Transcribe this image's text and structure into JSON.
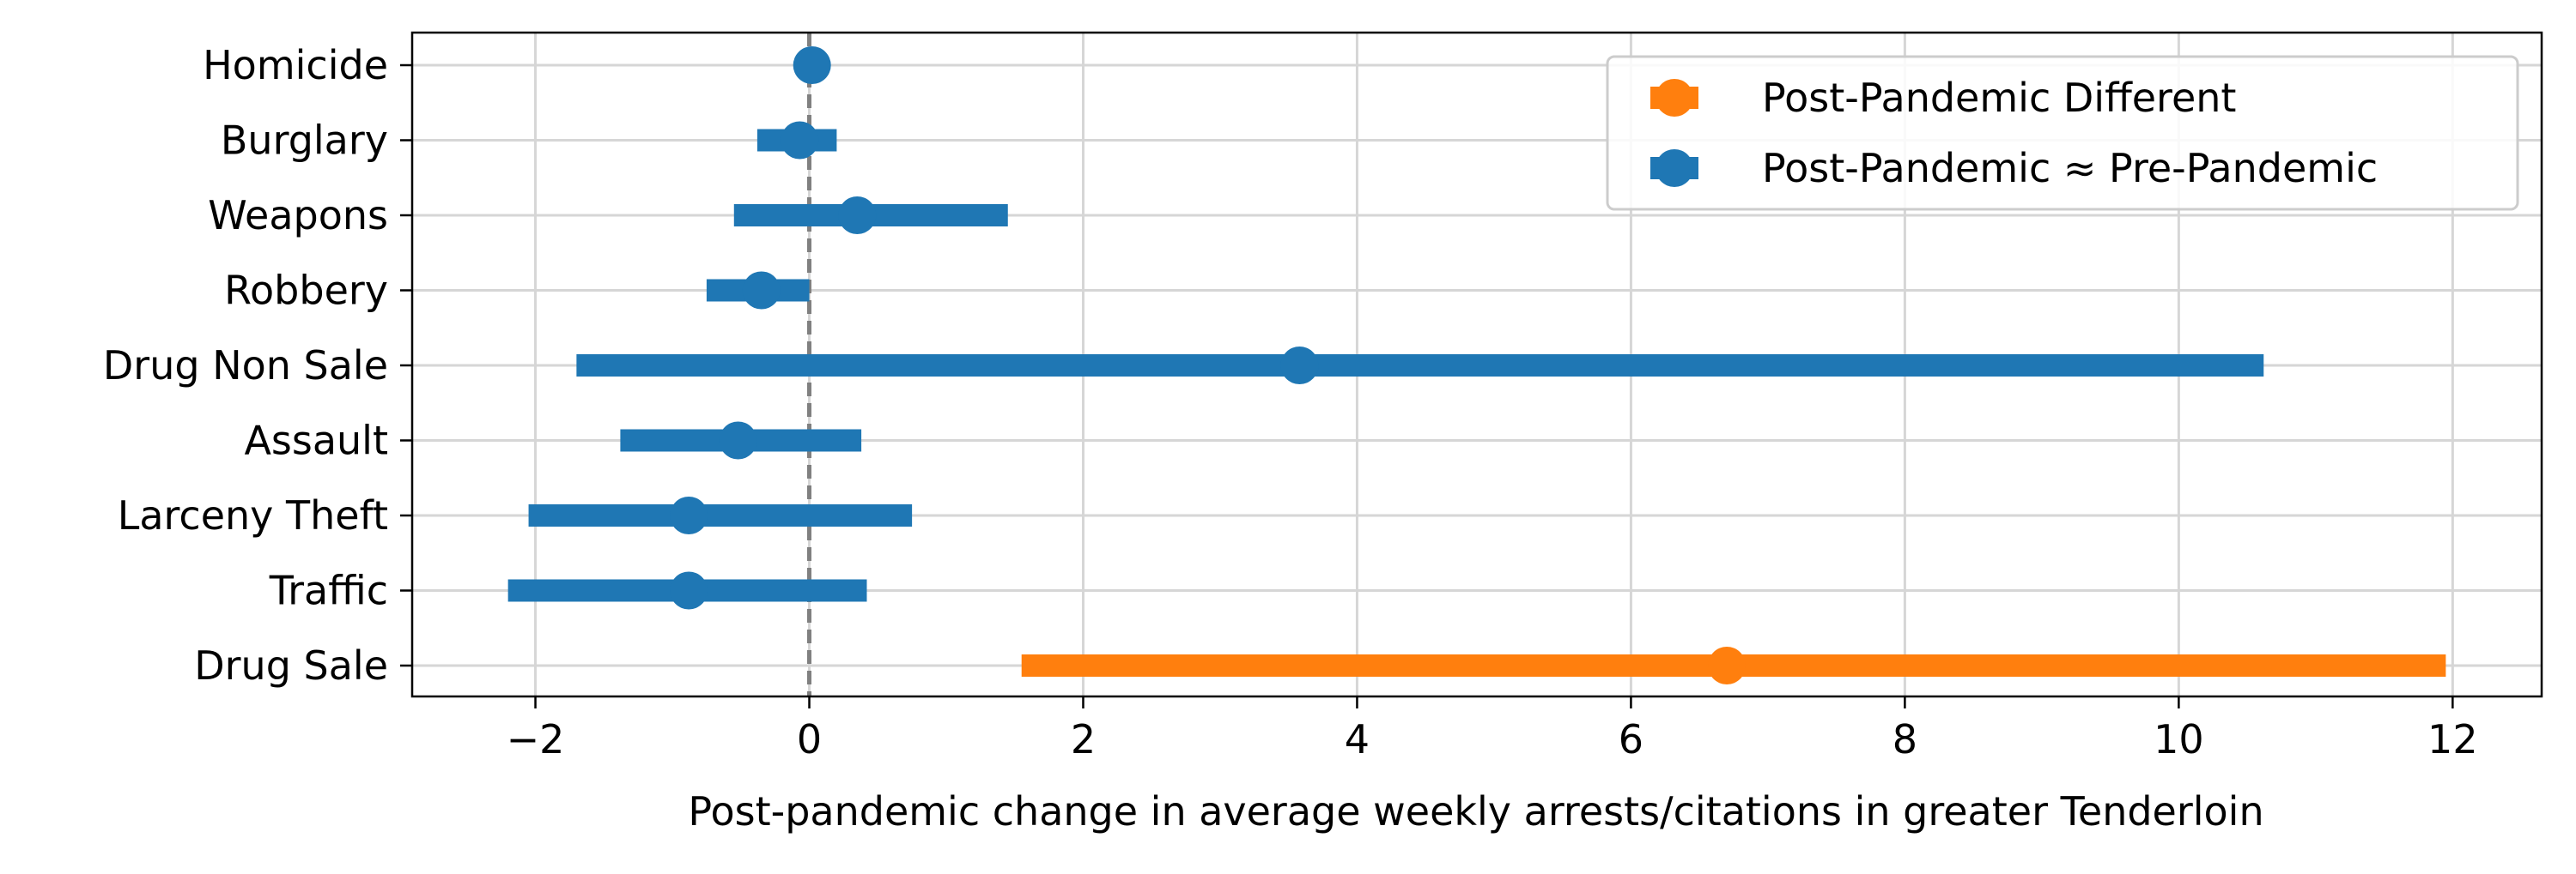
{
  "chart_data": {
    "type": "forest",
    "xlabel": "Post-pandemic change in average weekly arrests/citations in greater Tenderloin",
    "ylabel": "",
    "title": "",
    "xlim": [
      -2.9,
      12.65
    ],
    "xticks": [
      -2,
      0,
      2,
      4,
      6,
      8,
      10,
      12
    ],
    "xtick_labels": [
      "−2",
      "0",
      "2",
      "4",
      "6",
      "8",
      "10",
      "12"
    ],
    "grid": true,
    "reference_line": 0,
    "legend_position": "top-right",
    "series": [
      {
        "name": "Post-Pandemic Different",
        "color": "#ff7f0e"
      },
      {
        "name": "Post-Pandemic ≈ Pre-Pandemic",
        "color": "#1f77b4"
      }
    ],
    "categories": [
      {
        "label": "Homicide",
        "estimate": 0.02,
        "low": 0.02,
        "high": 0.02,
        "series": 1
      },
      {
        "label": "Burglary",
        "estimate": -0.07,
        "low": -0.38,
        "high": 0.2,
        "series": 1
      },
      {
        "label": "Weapons",
        "estimate": 0.35,
        "low": -0.55,
        "high": 1.45,
        "series": 1
      },
      {
        "label": "Robbery",
        "estimate": -0.35,
        "low": -0.75,
        "high": 0.0,
        "series": 1
      },
      {
        "label": "Drug Non Sale",
        "estimate": 3.58,
        "low": -1.7,
        "high": 10.62,
        "series": 1
      },
      {
        "label": "Assault",
        "estimate": -0.52,
        "low": -1.38,
        "high": 0.38,
        "series": 1
      },
      {
        "label": "Larceny Theft",
        "estimate": -0.88,
        "low": -2.05,
        "high": 0.75,
        "series": 1
      },
      {
        "label": "Traffic",
        "estimate": -0.88,
        "low": -2.2,
        "high": 0.42,
        "series": 1
      },
      {
        "label": "Drug Sale",
        "estimate": 6.7,
        "low": 1.55,
        "high": 11.95,
        "series": 0
      }
    ]
  }
}
